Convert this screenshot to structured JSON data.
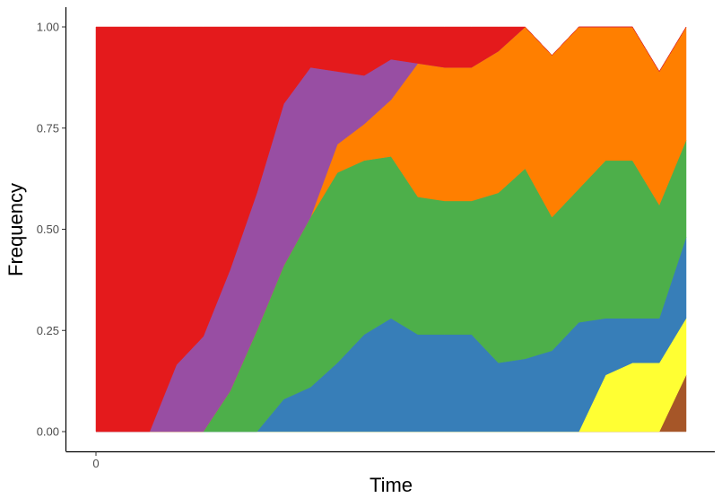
{
  "chart_data": {
    "type": "area",
    "stacked": true,
    "normalized": true,
    "xlabel": "Time",
    "ylabel": "Frequency",
    "x_ticks": [
      0
    ],
    "y_ticks": [
      0,
      0.25,
      0.5,
      0.75,
      1
    ],
    "y_tick_labels": [
      "0.00",
      "0.25",
      "0.50",
      "0.75",
      "1.00"
    ],
    "ylim": [
      0,
      1
    ],
    "grid": false,
    "legend": "none",
    "x": [
      0,
      1,
      1.5,
      2,
      2.5,
      3,
      3.5,
      4,
      4.5,
      5,
      5.5,
      6,
      6.5,
      7,
      7.5,
      8,
      8.5,
      9,
      9.5,
      10,
      10.5,
      11
    ],
    "series": [
      {
        "color": "#A65628",
        "values": [
          0,
          0,
          0,
          0,
          0,
          0,
          0,
          0,
          0,
          0,
          0,
          0,
          0,
          0,
          0,
          0,
          0,
          0,
          0,
          0,
          0,
          0.14
        ]
      },
      {
        "color": "#FFFF33",
        "values": [
          0,
          0,
          0,
          0,
          0,
          0,
          0,
          0,
          0,
          0,
          0,
          0,
          0,
          0,
          0,
          0,
          0,
          0,
          0.14,
          0.17,
          0.17,
          0.14
        ]
      },
      {
        "color": "#377EB8",
        "values": [
          0,
          0,
          0,
          0,
          0,
          0,
          0.08,
          0.11,
          0.17,
          0.24,
          0.28,
          0.24,
          0.24,
          0.24,
          0.17,
          0.18,
          0.2,
          0.27,
          0.14,
          0.11,
          0.11,
          0.2
        ]
      },
      {
        "color": "#4DAF4A",
        "values": [
          0,
          0,
          0,
          0,
          0.1,
          0.25,
          0.33,
          0.42,
          0.47,
          0.43,
          0.4,
          0.34,
          0.33,
          0.33,
          0.42,
          0.47,
          0.33,
          0.33,
          0.39,
          0.39,
          0.28,
          0.24
        ]
      },
      {
        "color": "#FF7F00",
        "values": [
          0,
          0,
          0,
          0,
          0,
          0,
          0,
          0,
          0.07,
          0.09,
          0.14,
          0.33,
          0.33,
          0.33,
          0.35,
          0.35,
          0.4,
          0.4,
          0.33,
          0.33,
          0.33,
          0.28
        ]
      },
      {
        "color": "#984EA3",
        "values": [
          0,
          0,
          0.165,
          0.235,
          0.3,
          0.34,
          0.4,
          0.37,
          0.18,
          0.12,
          0.1,
          0,
          0,
          0,
          0,
          0,
          0,
          0,
          0,
          0,
          0,
          0
        ]
      },
      {
        "color": "#E41A1C",
        "values": [
          1,
          1,
          0.835,
          0.765,
          0.6,
          0.41,
          0.19,
          0.1,
          0.11,
          0.12,
          0.08,
          0.09,
          0.1,
          0.1,
          0.06,
          0,
          0,
          0,
          0,
          0,
          0,
          0
        ]
      }
    ]
  }
}
